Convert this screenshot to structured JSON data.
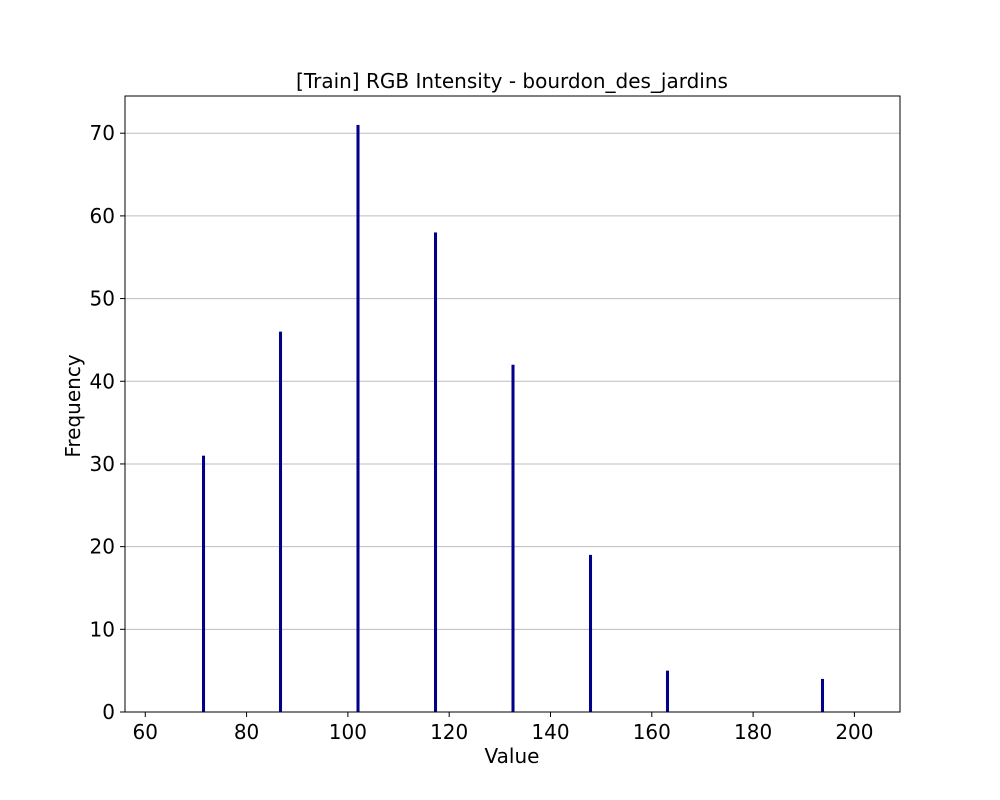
{
  "chart_data": {
    "type": "bar",
    "title": "[Train] RGB Intensity - bourdon_des_jardins",
    "xlabel": "Value",
    "ylabel": "Frequency",
    "x": [
      71.5,
      86.7,
      102.0,
      117.3,
      132.6,
      147.9,
      163.1,
      193.7
    ],
    "values": [
      31,
      46,
      71,
      58,
      42,
      19,
      5,
      4
    ],
    "bar_width": 0.6,
    "xlim": [
      56,
      209
    ],
    "ylim": [
      0,
      74.5
    ],
    "xticks": [
      60,
      80,
      100,
      120,
      140,
      160,
      180,
      200
    ],
    "yticks": [
      0,
      10,
      20,
      30,
      40,
      50,
      60,
      70
    ],
    "grid": "y",
    "bar_color": "#00008b"
  }
}
